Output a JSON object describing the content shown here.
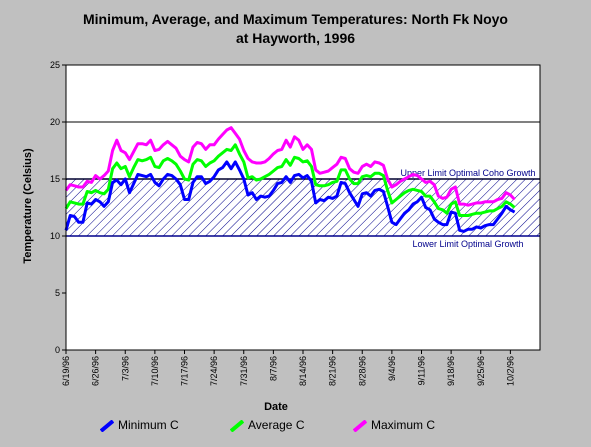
{
  "chart_data": {
    "type": "line",
    "title_line1": "Minimum, Average, and Maximum Temperatures:  North Fk Noyo",
    "title_line2": "at Hayworth, 1996",
    "xlabel": "Date",
    "ylabel": "Temperature (Celsius)",
    "ylim": [
      0,
      25
    ],
    "yticks": [
      0,
      5,
      10,
      15,
      20,
      25
    ],
    "xlim": [
      0,
      112
    ],
    "xticks": [
      {
        "label": "6/19/96",
        "x": 0
      },
      {
        "label": "6/26/96",
        "x": 7
      },
      {
        "label": "7/3/96",
        "x": 14
      },
      {
        "label": "7/10/96",
        "x": 21
      },
      {
        "label": "7/17/96",
        "x": 28
      },
      {
        "label": "7/24/96",
        "x": 35
      },
      {
        "label": "7/31/96",
        "x": 42
      },
      {
        "label": "8/7/96",
        "x": 49
      },
      {
        "label": "8/14/96",
        "x": 56
      },
      {
        "label": "8/21/96",
        "x": 63
      },
      {
        "label": "8/28/96",
        "x": 70
      },
      {
        "label": "9/4/96",
        "x": 77
      },
      {
        "label": "9/11/96",
        "x": 84
      },
      {
        "label": "9/18/96",
        "x": 91
      },
      {
        "label": "9/25/96",
        "x": 98
      },
      {
        "label": "10/2/96",
        "x": 105
      }
    ],
    "gridlines": [
      15,
      20
    ],
    "band": {
      "lower": 10,
      "upper": 15,
      "upper_label": "Upper Limit Optimal Coho Growth",
      "lower_label": "Lower Limit Optimal Growth"
    },
    "series": [
      {
        "name": "Minimum C",
        "color": "#0000ff",
        "values": [
          10.5,
          11.8,
          11.7,
          11.2,
          11.2,
          12.9,
          12.8,
          13.2,
          13.0,
          12.6,
          13.0,
          14.7,
          14.9,
          14.5,
          15.0,
          13.8,
          14.6,
          15.4,
          15.3,
          15.2,
          15.4,
          14.7,
          14.4,
          15.0,
          15.4,
          15.3,
          15.0,
          14.5,
          13.2,
          13.2,
          14.7,
          15.2,
          15.2,
          14.6,
          14.8,
          15.2,
          15.8,
          16.0,
          16.5,
          15.9,
          16.5,
          15.8,
          15.0,
          13.6,
          13.8,
          13.2,
          13.5,
          13.4,
          13.5,
          14.0,
          14.6,
          14.7,
          15.2,
          14.7,
          15.3,
          15.4,
          15.1,
          15.3,
          14.8,
          12.9,
          13.2,
          13.1,
          13.4,
          13.3,
          13.5,
          14.7,
          14.6,
          13.8,
          13.2,
          12.6,
          13.7,
          13.8,
          13.5,
          14.0,
          14.1,
          13.9,
          12.6,
          11.2,
          11.0,
          11.5,
          12.0,
          12.3,
          12.8,
          13.0,
          13.4,
          12.5,
          12.3,
          11.5,
          11.2,
          11.0,
          11.0,
          12.1,
          12.0,
          10.5,
          10.4,
          10.6,
          10.6,
          10.8,
          10.7,
          10.9,
          11.0,
          11.0,
          11.5,
          12.0,
          12.6,
          12.3,
          12.1
        ]
      },
      {
        "name": "Average C",
        "color": "#00ff00",
        "values": [
          12.4,
          13.0,
          12.9,
          12.8,
          12.8,
          13.9,
          13.8,
          14.0,
          13.8,
          13.7,
          14.1,
          15.9,
          16.4,
          15.9,
          16.1,
          15.2,
          16.0,
          16.7,
          16.6,
          16.7,
          16.9,
          16.1,
          16.0,
          16.6,
          16.8,
          16.6,
          16.3,
          15.7,
          15.0,
          14.9,
          16.3,
          16.7,
          16.6,
          16.1,
          16.4,
          16.6,
          17.0,
          17.3,
          17.6,
          17.5,
          18.0,
          17.2,
          16.5,
          15.1,
          15.2,
          14.9,
          15.0,
          15.2,
          15.4,
          15.7,
          16.0,
          16.1,
          16.7,
          16.2,
          16.9,
          16.8,
          16.5,
          16.6,
          16.1,
          14.5,
          14.4,
          14.4,
          14.5,
          14.7,
          14.8,
          15.8,
          15.8,
          15.0,
          14.6,
          14.6,
          15.2,
          15.3,
          15.2,
          15.5,
          15.5,
          15.3,
          14.0,
          12.9,
          13.2,
          13.5,
          13.8,
          14.0,
          14.1,
          14.0,
          13.9,
          13.5,
          13.5,
          13.0,
          12.4,
          12.3,
          12.0,
          12.8,
          13.0,
          11.8,
          11.8,
          11.8,
          11.9,
          12.0,
          12.0,
          12.1,
          12.2,
          12.2,
          12.4,
          12.6,
          13.0,
          12.8,
          12.5
        ]
      },
      {
        "name": "Maximum C",
        "color": "#ff00ff",
        "values": [
          14.0,
          14.5,
          14.4,
          14.3,
          14.3,
          14.8,
          14.7,
          15.3,
          15.0,
          15.3,
          15.7,
          17.5,
          18.4,
          17.5,
          17.3,
          16.7,
          17.4,
          18.1,
          18.1,
          18.0,
          18.4,
          17.5,
          17.6,
          18.0,
          18.3,
          18.0,
          17.7,
          17.0,
          16.7,
          16.5,
          17.8,
          18.2,
          18.1,
          17.6,
          18.0,
          18.0,
          18.5,
          18.9,
          19.3,
          19.5,
          19.0,
          18.5,
          17.5,
          16.8,
          16.5,
          16.4,
          16.4,
          16.5,
          16.8,
          17.2,
          17.5,
          17.6,
          18.4,
          17.8,
          18.7,
          18.4,
          17.6,
          18.0,
          17.6,
          15.8,
          15.5,
          15.6,
          15.7,
          16.0,
          16.3,
          16.9,
          16.8,
          15.9,
          15.6,
          15.5,
          16.1,
          16.3,
          16.1,
          16.5,
          16.4,
          16.2,
          15.0,
          14.3,
          14.5,
          14.8,
          15.0,
          15.2,
          15.4,
          15.3,
          15.0,
          14.7,
          14.8,
          14.5,
          13.5,
          13.3,
          13.4,
          14.1,
          14.3,
          12.8,
          12.8,
          12.7,
          12.8,
          12.9,
          12.9,
          13.0,
          13.0,
          13.0,
          13.2,
          13.3,
          13.8,
          13.6,
          13.2
        ]
      }
    ]
  }
}
